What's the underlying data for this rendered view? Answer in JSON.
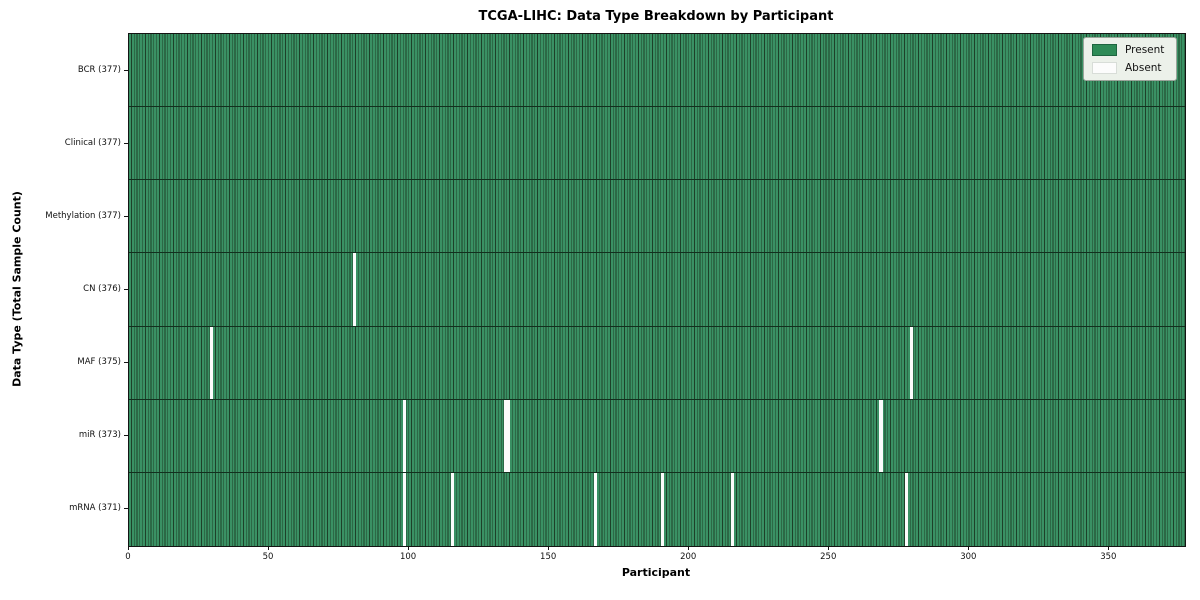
{
  "colors": {
    "present": "#2e8b57",
    "stripe_light": "#3a9164",
    "stripe_dark": "#1d4129",
    "row_divider": "#12301e",
    "absent": "#fcfcfc",
    "legend_bg": "#ecf1ea",
    "legend_border": "#9aa49a",
    "plot_border": "#141414"
  },
  "chart_data": {
    "type": "heatmap",
    "title": "TCGA-LIHC: Data Type Breakdown by Participant",
    "xlabel": "Participant",
    "ylabel": "Data Type (Total Sample Count)",
    "x_ticks": [
      0,
      50,
      100,
      150,
      200,
      250,
      300,
      350
    ],
    "x_range": [
      0,
      377
    ],
    "n_participants": 377,
    "grid": false,
    "legend_position": "upper right",
    "legend": [
      {
        "label": "Present",
        "color": "#2e8b57"
      },
      {
        "label": "Absent",
        "color": "#ffffff"
      }
    ],
    "rows": [
      {
        "data_type": "BCR",
        "label": "BCR (377)",
        "total": 377,
        "absent_participants": []
      },
      {
        "data_type": "Clinical",
        "label": "Clinical (377)",
        "total": 377,
        "absent_participants": []
      },
      {
        "data_type": "Methylation",
        "label": "Methylation (377)",
        "total": 377,
        "absent_participants": []
      },
      {
        "data_type": "CN",
        "label": "CN (376)",
        "total": 376,
        "absent_participants": [
          80
        ]
      },
      {
        "data_type": "MAF",
        "label": "MAF (375)",
        "total": 375,
        "absent_participants": [
          29,
          279
        ]
      },
      {
        "data_type": "miR",
        "label": "miR (373)",
        "total": 373,
        "absent_participants": [
          98,
          134,
          135,
          268
        ]
      },
      {
        "data_type": "mRNA",
        "label": "mRNA (371)",
        "total": 371,
        "absent_participants": [
          98,
          115,
          166,
          190,
          215,
          277
        ]
      }
    ]
  }
}
